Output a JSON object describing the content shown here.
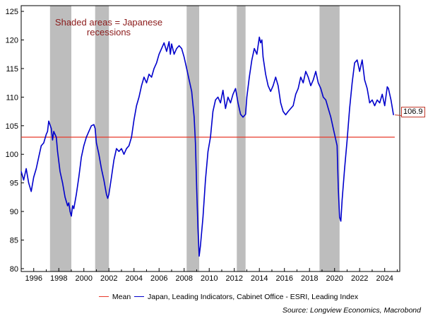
{
  "chart_data": {
    "type": "line",
    "title": "",
    "xlabel": "",
    "ylabel": "",
    "xlim": [
      1995.0,
      2025.2
    ],
    "ylim": [
      79.5,
      126
    ],
    "x_ticks": [
      1996,
      1998,
      2000,
      2002,
      2004,
      2006,
      2008,
      2010,
      2012,
      2014,
      2016,
      2018,
      2020,
      2022,
      2024
    ],
    "y_ticks": [
      80,
      85,
      90,
      95,
      100,
      105,
      110,
      115,
      120,
      125
    ],
    "grid": false,
    "legend_position": "bottom",
    "recessions": [
      [
        1997.3,
        1999.0
      ],
      [
        2000.9,
        2002.0
      ],
      [
        2008.2,
        2009.2
      ],
      [
        2012.2,
        2012.9
      ],
      [
        2018.8,
        2020.4
      ]
    ],
    "series": [
      {
        "name": "Japan, Leading Indicators, Cabinet Office - ESRI, Leading Index",
        "color": "#0000cc",
        "points": [
          [
            1995.0,
            97.0
          ],
          [
            1995.2,
            95.5
          ],
          [
            1995.4,
            97.5
          ],
          [
            1995.6,
            95.0
          ],
          [
            1995.8,
            93.5
          ],
          [
            1996.0,
            96.0
          ],
          [
            1996.2,
            97.5
          ],
          [
            1996.4,
            99.5
          ],
          [
            1996.6,
            101.5
          ],
          [
            1996.8,
            102.0
          ],
          [
            1997.0,
            103.5
          ],
          [
            1997.1,
            104.0
          ],
          [
            1997.2,
            105.8
          ],
          [
            1997.4,
            104.5
          ],
          [
            1997.5,
            102.5
          ],
          [
            1997.6,
            104.0
          ],
          [
            1997.8,
            103.0
          ],
          [
            1997.9,
            100.5
          ],
          [
            1998.1,
            97.0
          ],
          [
            1998.3,
            95.0
          ],
          [
            1998.5,
            92.5
          ],
          [
            1998.7,
            91.0
          ],
          [
            1998.8,
            91.5
          ],
          [
            1998.9,
            90.0
          ],
          [
            1999.0,
            89.2
          ],
          [
            1999.1,
            91.0
          ],
          [
            1999.2,
            90.5
          ],
          [
            1999.4,
            93.0
          ],
          [
            1999.6,
            96.0
          ],
          [
            1999.8,
            99.5
          ],
          [
            2000.0,
            101.5
          ],
          [
            2000.2,
            103.0
          ],
          [
            2000.4,
            104.0
          ],
          [
            2000.6,
            105.0
          ],
          [
            2000.8,
            105.2
          ],
          [
            2000.9,
            104.5
          ],
          [
            2001.0,
            102.0
          ],
          [
            2001.2,
            100.0
          ],
          [
            2001.4,
            97.5
          ],
          [
            2001.6,
            95.5
          ],
          [
            2001.8,
            93.0
          ],
          [
            2001.9,
            92.3
          ],
          [
            2002.0,
            93.0
          ],
          [
            2002.2,
            96.0
          ],
          [
            2002.4,
            99.0
          ],
          [
            2002.6,
            101.0
          ],
          [
            2002.8,
            100.5
          ],
          [
            2003.0,
            101.0
          ],
          [
            2003.2,
            100.0
          ],
          [
            2003.4,
            101.0
          ],
          [
            2003.6,
            101.5
          ],
          [
            2003.8,
            103.0
          ],
          [
            2004.0,
            106.0
          ],
          [
            2004.2,
            108.5
          ],
          [
            2004.4,
            110.0
          ],
          [
            2004.6,
            112.0
          ],
          [
            2004.8,
            113.5
          ],
          [
            2005.0,
            112.5
          ],
          [
            2005.2,
            114.0
          ],
          [
            2005.4,
            113.5
          ],
          [
            2005.6,
            115.0
          ],
          [
            2005.8,
            116.0
          ],
          [
            2006.0,
            117.5
          ],
          [
            2006.2,
            118.5
          ],
          [
            2006.4,
            119.5
          ],
          [
            2006.6,
            118.0
          ],
          [
            2006.8,
            119.7
          ],
          [
            2006.9,
            117.5
          ],
          [
            2007.0,
            119.3
          ],
          [
            2007.2,
            117.5
          ],
          [
            2007.4,
            118.5
          ],
          [
            2007.6,
            119.0
          ],
          [
            2007.8,
            118.5
          ],
          [
            2008.0,
            117.0
          ],
          [
            2008.2,
            115.0
          ],
          [
            2008.4,
            113.0
          ],
          [
            2008.6,
            111.0
          ],
          [
            2008.8,
            106.5
          ],
          [
            2008.9,
            102.0
          ],
          [
            2009.0,
            94.0
          ],
          [
            2009.1,
            87.0
          ],
          [
            2009.2,
            82.2
          ],
          [
            2009.3,
            84.0
          ],
          [
            2009.5,
            89.0
          ],
          [
            2009.7,
            95.5
          ],
          [
            2009.9,
            100.5
          ],
          [
            2010.1,
            103.0
          ],
          [
            2010.3,
            107.5
          ],
          [
            2010.5,
            109.5
          ],
          [
            2010.7,
            110.0
          ],
          [
            2010.9,
            109.0
          ],
          [
            2011.1,
            111.2
          ],
          [
            2011.3,
            108.0
          ],
          [
            2011.5,
            110.0
          ],
          [
            2011.7,
            109.0
          ],
          [
            2011.9,
            110.5
          ],
          [
            2012.1,
            111.5
          ],
          [
            2012.3,
            109.0
          ],
          [
            2012.5,
            107.0
          ],
          [
            2012.7,
            106.5
          ],
          [
            2012.9,
            107.0
          ],
          [
            2013.0,
            110.0
          ],
          [
            2013.2,
            113.5
          ],
          [
            2013.4,
            116.5
          ],
          [
            2013.6,
            118.5
          ],
          [
            2013.8,
            117.5
          ],
          [
            2014.0,
            120.5
          ],
          [
            2014.1,
            119.5
          ],
          [
            2014.2,
            120.0
          ],
          [
            2014.3,
            117.0
          ],
          [
            2014.5,
            114.0
          ],
          [
            2014.7,
            112.0
          ],
          [
            2014.9,
            111.0
          ],
          [
            2015.1,
            112.0
          ],
          [
            2015.3,
            113.5
          ],
          [
            2015.5,
            112.0
          ],
          [
            2015.7,
            109.0
          ],
          [
            2015.9,
            107.5
          ],
          [
            2016.1,
            106.9
          ],
          [
            2016.3,
            107.5
          ],
          [
            2016.5,
            108.0
          ],
          [
            2016.7,
            108.5
          ],
          [
            2016.9,
            110.5
          ],
          [
            2017.1,
            111.5
          ],
          [
            2017.3,
            113.5
          ],
          [
            2017.5,
            112.5
          ],
          [
            2017.7,
            114.5
          ],
          [
            2017.9,
            113.5
          ],
          [
            2018.1,
            112.0
          ],
          [
            2018.3,
            113.0
          ],
          [
            2018.5,
            114.5
          ],
          [
            2018.7,
            112.5
          ],
          [
            2018.9,
            111.5
          ],
          [
            2019.1,
            110.0
          ],
          [
            2019.3,
            109.5
          ],
          [
            2019.5,
            108.0
          ],
          [
            2019.7,
            106.5
          ],
          [
            2019.9,
            104.5
          ],
          [
            2020.1,
            102.5
          ],
          [
            2020.2,
            101.5
          ],
          [
            2020.3,
            94.0
          ],
          [
            2020.4,
            89.0
          ],
          [
            2020.5,
            88.3
          ],
          [
            2020.6,
            92.0
          ],
          [
            2020.8,
            97.5
          ],
          [
            2021.0,
            102.5
          ],
          [
            2021.2,
            108.0
          ],
          [
            2021.4,
            112.5
          ],
          [
            2021.6,
            116.0
          ],
          [
            2021.8,
            116.5
          ],
          [
            2022.0,
            114.5
          ],
          [
            2022.2,
            116.5
          ],
          [
            2022.4,
            113.0
          ],
          [
            2022.6,
            111.5
          ],
          [
            2022.8,
            109.0
          ],
          [
            2023.0,
            109.5
          ],
          [
            2023.2,
            108.5
          ],
          [
            2023.4,
            109.5
          ],
          [
            2023.6,
            109.0
          ],
          [
            2023.8,
            110.5
          ],
          [
            2024.0,
            108.5
          ],
          [
            2024.2,
            111.8
          ],
          [
            2024.3,
            111.5
          ],
          [
            2024.5,
            109.5
          ],
          [
            2024.7,
            106.9
          ]
        ]
      },
      {
        "name": "Mean",
        "color": "#e8392b",
        "value": 103.0
      }
    ],
    "annotation": "Shaded areas = Japanese recessions",
    "last_value_label": "106.9"
  },
  "source": "Source: Longview Economics, Macrobond"
}
